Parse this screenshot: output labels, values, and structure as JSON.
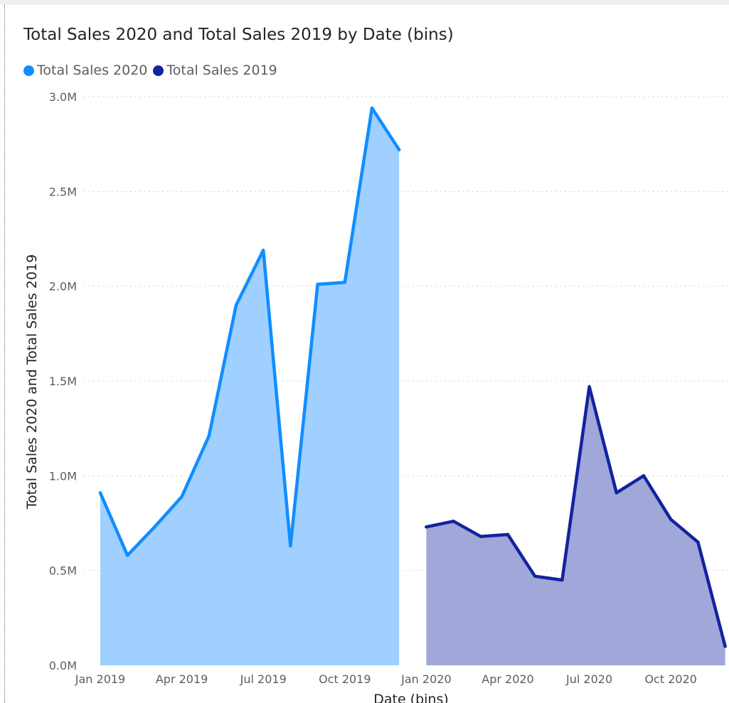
{
  "chart_data": {
    "type": "area",
    "title": "Total Sales 2020 and Total Sales 2019 by Date (bins)",
    "xlabel": "Date (bins)",
    "ylabel": "Total Sales 2020 and Total Sales 2019",
    "ylim": [
      0,
      3000000
    ],
    "y_ticks": [
      "0.0M",
      "0.5M",
      "1.0M",
      "1.5M",
      "2.0M",
      "2.5M",
      "3.0M"
    ],
    "x_ticks": [
      "Jan 2019",
      "Apr 2019",
      "Jul 2019",
      "Oct 2019",
      "Jan 2020",
      "Apr 2020",
      "Jul 2020",
      "Oct 2020"
    ],
    "grid": true,
    "legend_position": "top-left",
    "series": [
      {
        "name": "Total Sales 2020",
        "color": "#118dff",
        "fill": "#9fd0ff",
        "x": [
          "Jan 2019",
          "Feb 2019",
          "Mar 2019",
          "Apr 2019",
          "May 2019",
          "Jun 2019",
          "Jul 2019",
          "Aug 2019",
          "Sep 2019",
          "Oct 2019",
          "Nov 2019",
          "Dec 2019"
        ],
        "values": [
          910000,
          580000,
          730000,
          890000,
          1210000,
          1900000,
          2190000,
          630000,
          2010000,
          2020000,
          2940000,
          2720000
        ]
      },
      {
        "name": "Total Sales 2019",
        "color": "#12239e",
        "fill": "#a1a7d9",
        "x": [
          "Jan 2020",
          "Feb 2020",
          "Mar 2020",
          "Apr 2020",
          "May 2020",
          "Jun 2020",
          "Jul 2020",
          "Aug 2020",
          "Sep 2020",
          "Oct 2020",
          "Nov 2020",
          "Dec 2020"
        ],
        "values": [
          730000,
          760000,
          680000,
          690000,
          470000,
          450000,
          1470000,
          910000,
          1000000,
          770000,
          650000,
          100000
        ]
      }
    ]
  }
}
